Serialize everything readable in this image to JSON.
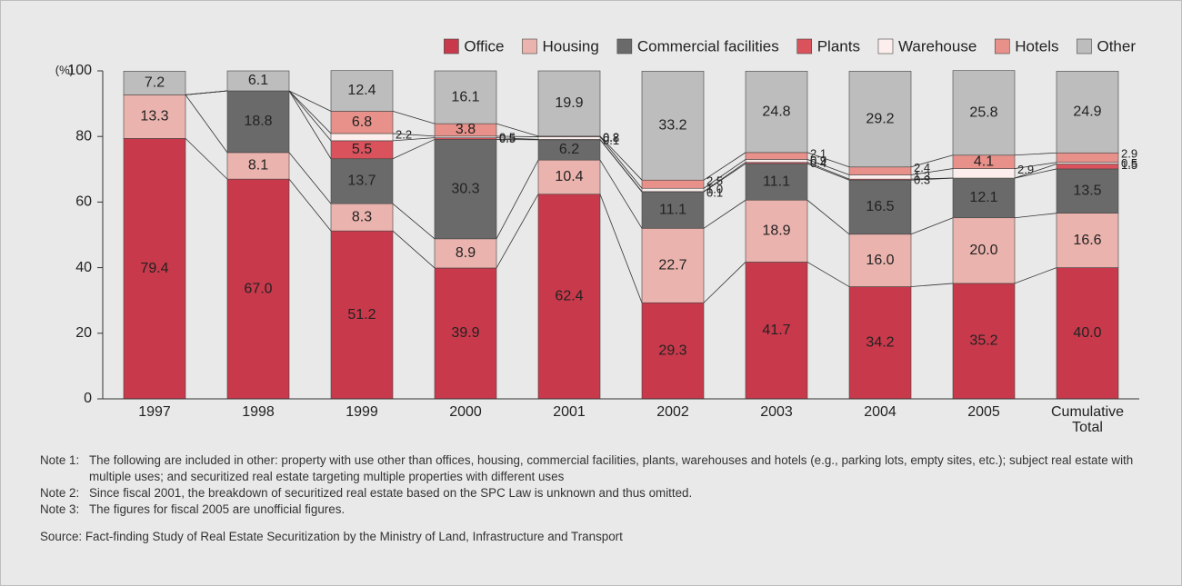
{
  "chart_data": {
    "type": "stacked-bar",
    "ylabel": "(%)",
    "categories": [
      "1997",
      "1998",
      "1999",
      "2000",
      "2001",
      "2002",
      "2003",
      "2004",
      "2005",
      "Cumulative Total"
    ],
    "series": [
      {
        "name": "Office",
        "color": "#c8394b",
        "values": [
          79.4,
          67.0,
          51.2,
          39.9,
          62.4,
          29.3,
          41.7,
          34.2,
          35.2,
          40.0
        ],
        "value_labels": [
          "79.4",
          "67.0",
          "51.2",
          "39.9",
          "62.4",
          "29.3",
          "41.7",
          "34.2",
          "35.2",
          "40.0"
        ]
      },
      {
        "name": "Housing",
        "color": "#ebb3ae",
        "values": [
          13.3,
          8.1,
          8.3,
          8.9,
          10.4,
          22.7,
          18.9,
          16.0,
          20.0,
          16.6
        ],
        "value_labels": [
          "13.3",
          "8.1",
          "8.3",
          "8.9",
          "10.4",
          "22.7",
          "18.9",
          "16.0",
          "20.0",
          "16.6"
        ]
      },
      {
        "name": "Commercial facilities",
        "color": "#6a6a6a",
        "values": [
          null,
          18.8,
          13.7,
          30.3,
          6.2,
          11.1,
          11.1,
          16.5,
          12.1,
          13.5
        ],
        "value_labels": [
          null,
          "18.8",
          "13.7",
          "30.3",
          "6.2",
          "11.1",
          "11.1",
          "16.5",
          "12.1",
          "13.5"
        ]
      },
      {
        "name": "Plants",
        "color": "#d9525c",
        "values": [
          null,
          null,
          5.5,
          0.5,
          0.1,
          0.1,
          0.4,
          0.3,
          null,
          1.5
        ],
        "value_labels": [
          null,
          null,
          "5.5",
          "0.5",
          "0.1",
          "0.1",
          "0.4",
          "0.3",
          null,
          "1.5"
        ]
      },
      {
        "name": "Warehouse",
        "color": "#fbeeec",
        "values": [
          null,
          null,
          2.2,
          0.5,
          0.8,
          1.0,
          0.9,
          1.3,
          2.9,
          0.5
        ],
        "value_labels": [
          null,
          null,
          "2.2",
          "0.5",
          "0.8",
          "1.0",
          "0.9",
          "1.3",
          "2.9",
          "0.5"
        ]
      },
      {
        "name": "Hotels",
        "color": "#e8918a",
        "values": [
          null,
          null,
          6.8,
          3.8,
          0.2,
          2.5,
          2.1,
          2.4,
          4.1,
          2.9
        ],
        "value_labels": [
          null,
          null,
          "6.8",
          "3.8",
          "0.2",
          "2.5",
          "2.1",
          "2.4",
          "4.1",
          "2.9"
        ]
      },
      {
        "name": "Other",
        "color": "#bdbdbd",
        "values": [
          7.2,
          6.1,
          12.4,
          16.1,
          19.9,
          33.2,
          24.8,
          29.2,
          25.8,
          24.9
        ],
        "value_labels": [
          "7.2",
          "6.1",
          "12.4",
          "16.1",
          "19.9",
          "33.2",
          "24.8",
          "29.2",
          "25.8",
          "24.9"
        ]
      }
    ],
    "ylim": [
      0,
      100
    ],
    "yticks": [
      0,
      20,
      40,
      60,
      80,
      100
    ],
    "grid": false,
    "legend": "top-right"
  },
  "notes": [
    {
      "label": "Note 1:",
      "text": "The following are included in other: property with use other than offices, housing, commercial facilities, plants, warehouses and hotels (e.g., parking lots, empty sites, etc.); subject real estate with multiple uses; and securitized real estate targeting multiple properties with different uses"
    },
    {
      "label": "Note 2:",
      "text": "Since fiscal 2001, the breakdown of securitized real estate based on the SPC Law is unknown and thus omitted."
    },
    {
      "label": "Note 3:",
      "text": "The figures for fiscal 2005 are unofficial figures."
    }
  ],
  "source": "Source: Fact-finding Study of Real Estate Securitization by the Ministry of Land, Infrastructure and Transport"
}
